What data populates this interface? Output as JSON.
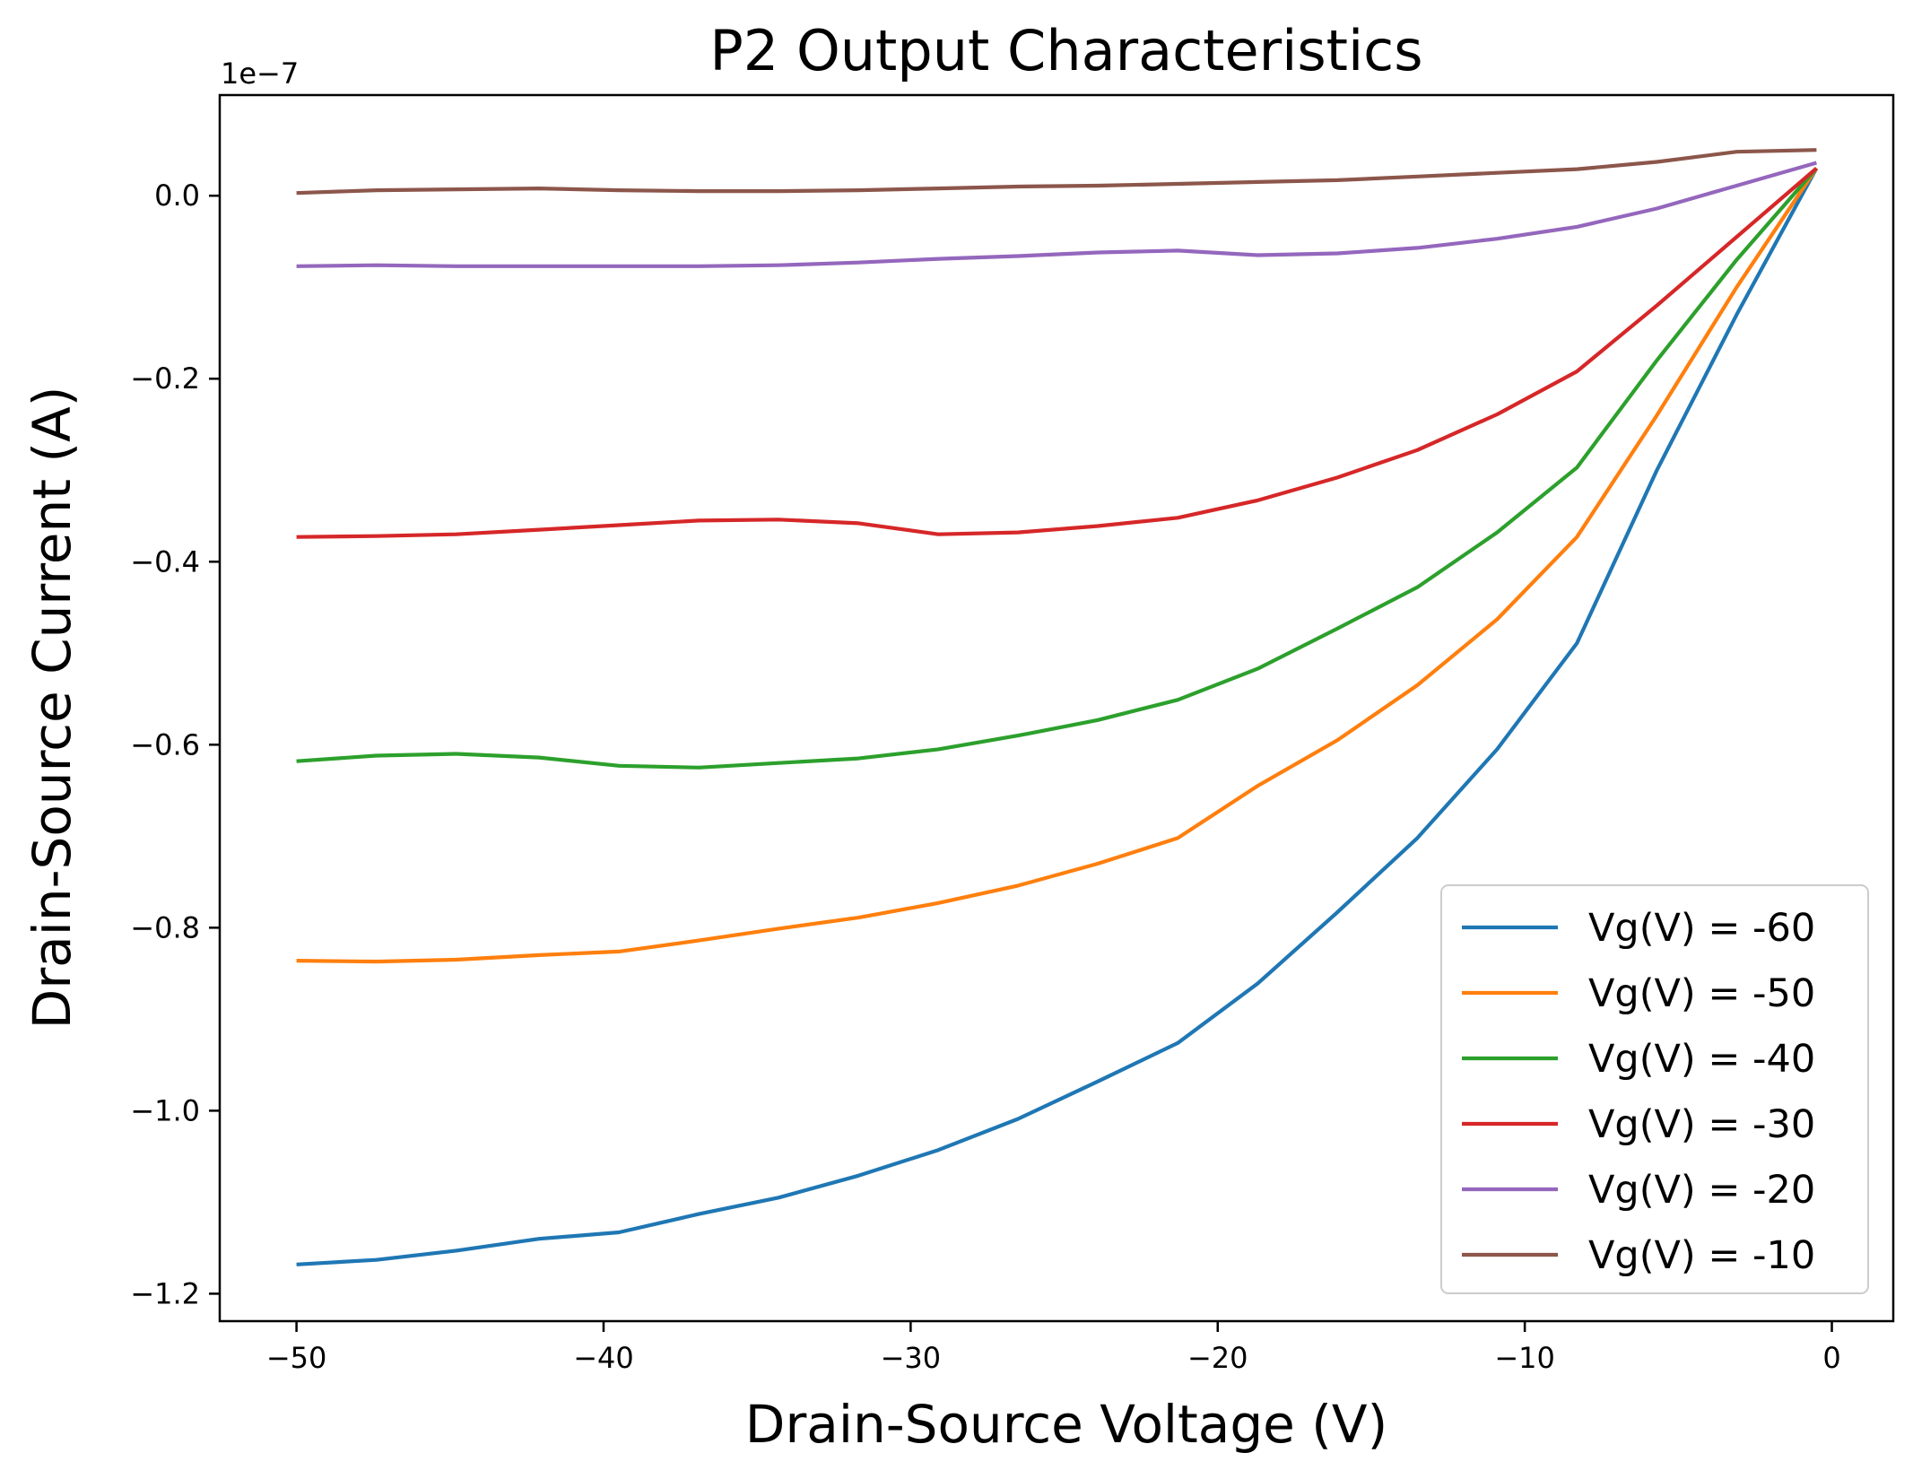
{
  "chart_data": {
    "type": "line",
    "title": "P2 Output Characteristics",
    "xlabel": "Drain-Source Voltage (V)",
    "ylabel": "Drain-Source Current (A)",
    "y_offset_text": "1e−7",
    "y_scale_factor": 1e-07,
    "xlim": [
      -52.5,
      2.0
    ],
    "ylim": [
      -1.23,
      0.11
    ],
    "x_ticks": [
      -50,
      -40,
      -30,
      -20,
      -10,
      0
    ],
    "x_tick_labels": [
      "−50",
      "−40",
      "−30",
      "−20",
      "−10",
      "0"
    ],
    "y_ticks": [
      0.0,
      -0.2,
      -0.4,
      -0.6,
      -0.8,
      -1.0,
      -1.2
    ],
    "y_tick_labels": [
      "0.0",
      "−0.2",
      "−0.4",
      "−0.6",
      "−0.8",
      "−1.0",
      "−1.2"
    ],
    "grid": false,
    "legend_position": "lower-right",
    "series": [
      {
        "name": "Vg(V) = -60",
        "color": "#1f77b4",
        "x": [
          -50,
          -47.4,
          -44.8,
          -42.1,
          -39.5,
          -36.9,
          -34.3,
          -31.7,
          -29.1,
          -26.5,
          -23.9,
          -21.3,
          -18.7,
          -16.1,
          -13.5,
          -10.9,
          -8.3,
          -5.7,
          -3.1,
          -0.5
        ],
        "y": [
          -1.168,
          -1.163,
          -1.153,
          -1.14,
          -1.133,
          -1.113,
          -1.095,
          -1.071,
          -1.043,
          -1.009,
          -0.968,
          -0.926,
          -0.861,
          -0.783,
          -0.702,
          -0.605,
          -0.489,
          -0.3,
          -0.13,
          0.03
        ]
      },
      {
        "name": "Vg(V) = -50",
        "color": "#ff7f0e",
        "x": [
          -50,
          -47.4,
          -44.8,
          -42.1,
          -39.5,
          -36.9,
          -34.3,
          -31.7,
          -29.1,
          -26.5,
          -23.9,
          -21.3,
          -18.7,
          -16.1,
          -13.5,
          -10.9,
          -8.3,
          -5.7,
          -3.1,
          -0.5
        ],
        "y": [
          -0.836,
          -0.837,
          -0.835,
          -0.83,
          -0.826,
          -0.814,
          -0.801,
          -0.789,
          -0.773,
          -0.754,
          -0.73,
          -0.702,
          -0.645,
          -0.595,
          -0.535,
          -0.463,
          -0.373,
          -0.24,
          -0.1,
          0.03
        ]
      },
      {
        "name": "Vg(V) = -40",
        "color": "#2ca02c",
        "x": [
          -50,
          -47.4,
          -44.8,
          -42.1,
          -39.5,
          -36.9,
          -34.3,
          -31.7,
          -29.1,
          -26.5,
          -23.9,
          -21.3,
          -18.7,
          -16.1,
          -13.5,
          -10.9,
          -8.3,
          -5.7,
          -3.1,
          -0.5
        ],
        "y": [
          -0.618,
          -0.612,
          -0.61,
          -0.614,
          -0.623,
          -0.625,
          -0.62,
          -0.615,
          -0.605,
          -0.59,
          -0.573,
          -0.551,
          -0.517,
          -0.473,
          -0.428,
          -0.368,
          -0.297,
          -0.18,
          -0.07,
          0.03
        ]
      },
      {
        "name": "Vg(V) = -30",
        "color": "#d62728",
        "x": [
          -50,
          -47.4,
          -44.8,
          -42.1,
          -39.5,
          -36.9,
          -34.3,
          -31.7,
          -29.1,
          -26.5,
          -23.9,
          -21.3,
          -18.7,
          -16.1,
          -13.5,
          -10.9,
          -8.3,
          -5.7,
          -3.1,
          -0.5
        ],
        "y": [
          -0.373,
          -0.372,
          -0.37,
          -0.365,
          -0.36,
          -0.355,
          -0.354,
          -0.358,
          -0.37,
          -0.368,
          -0.361,
          -0.352,
          -0.333,
          -0.308,
          -0.278,
          -0.239,
          -0.192,
          -0.12,
          -0.045,
          0.03
        ]
      },
      {
        "name": "Vg(V) = -20",
        "color": "#9467bd",
        "x": [
          -50,
          -47.4,
          -44.8,
          -42.1,
          -39.5,
          -36.9,
          -34.3,
          -31.7,
          -29.1,
          -26.5,
          -23.9,
          -21.3,
          -18.7,
          -16.1,
          -13.5,
          -10.9,
          -8.3,
          -5.7,
          -3.1,
          -0.5
        ],
        "y": [
          -0.077,
          -0.076,
          -0.077,
          -0.077,
          -0.077,
          -0.077,
          -0.076,
          -0.073,
          -0.069,
          -0.066,
          -0.062,
          -0.06,
          -0.065,
          -0.063,
          -0.057,
          -0.047,
          -0.034,
          -0.014,
          0.011,
          0.036
        ]
      },
      {
        "name": "Vg(V) = -10",
        "color": "#8c564b",
        "x": [
          -50,
          -47.4,
          -44.8,
          -42.1,
          -39.5,
          -36.9,
          -34.3,
          -31.7,
          -29.1,
          -26.5,
          -23.9,
          -21.3,
          -18.7,
          -16.1,
          -13.5,
          -10.9,
          -8.3,
          -5.7,
          -3.1,
          -0.5
        ],
        "y": [
          0.003,
          0.006,
          0.007,
          0.008,
          0.006,
          0.005,
          0.005,
          0.006,
          0.008,
          0.01,
          0.011,
          0.013,
          0.015,
          0.017,
          0.021,
          0.025,
          0.029,
          0.037,
          0.048,
          0.05
        ]
      }
    ]
  }
}
